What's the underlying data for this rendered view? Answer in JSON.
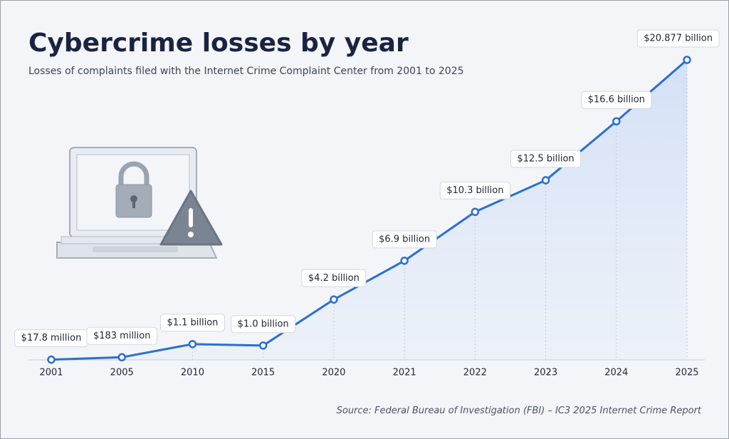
{
  "chart_data": {
    "type": "line",
    "title": "Cybercrime losses by year",
    "subtitle": "Losses of complaints filed with the Internet Crime Complaint Center from 2001 to 2025",
    "source": "Source: Federal Bureau of Investigation (FBI) – IC3 2025 Internet Crime Report",
    "categories": [
      "2001",
      "2005",
      "2010",
      "2015",
      "2020",
      "2021",
      "2022",
      "2023",
      "2024",
      "2025"
    ],
    "values": [
      0.0178,
      0.183,
      1.1,
      1.0,
      4.2,
      6.9,
      10.3,
      12.5,
      16.6,
      20.877
    ],
    "value_labels": [
      "$17.8 million",
      "$183 million",
      "$1.1 billion",
      "$1.0 billion",
      "$4.2 billion",
      "$6.9 billion",
      "$10.3 billion",
      "$12.5 billion",
      "$16.6 billion",
      "$20.877 billion"
    ],
    "color": "#2a6fd1",
    "area": true
  }
}
